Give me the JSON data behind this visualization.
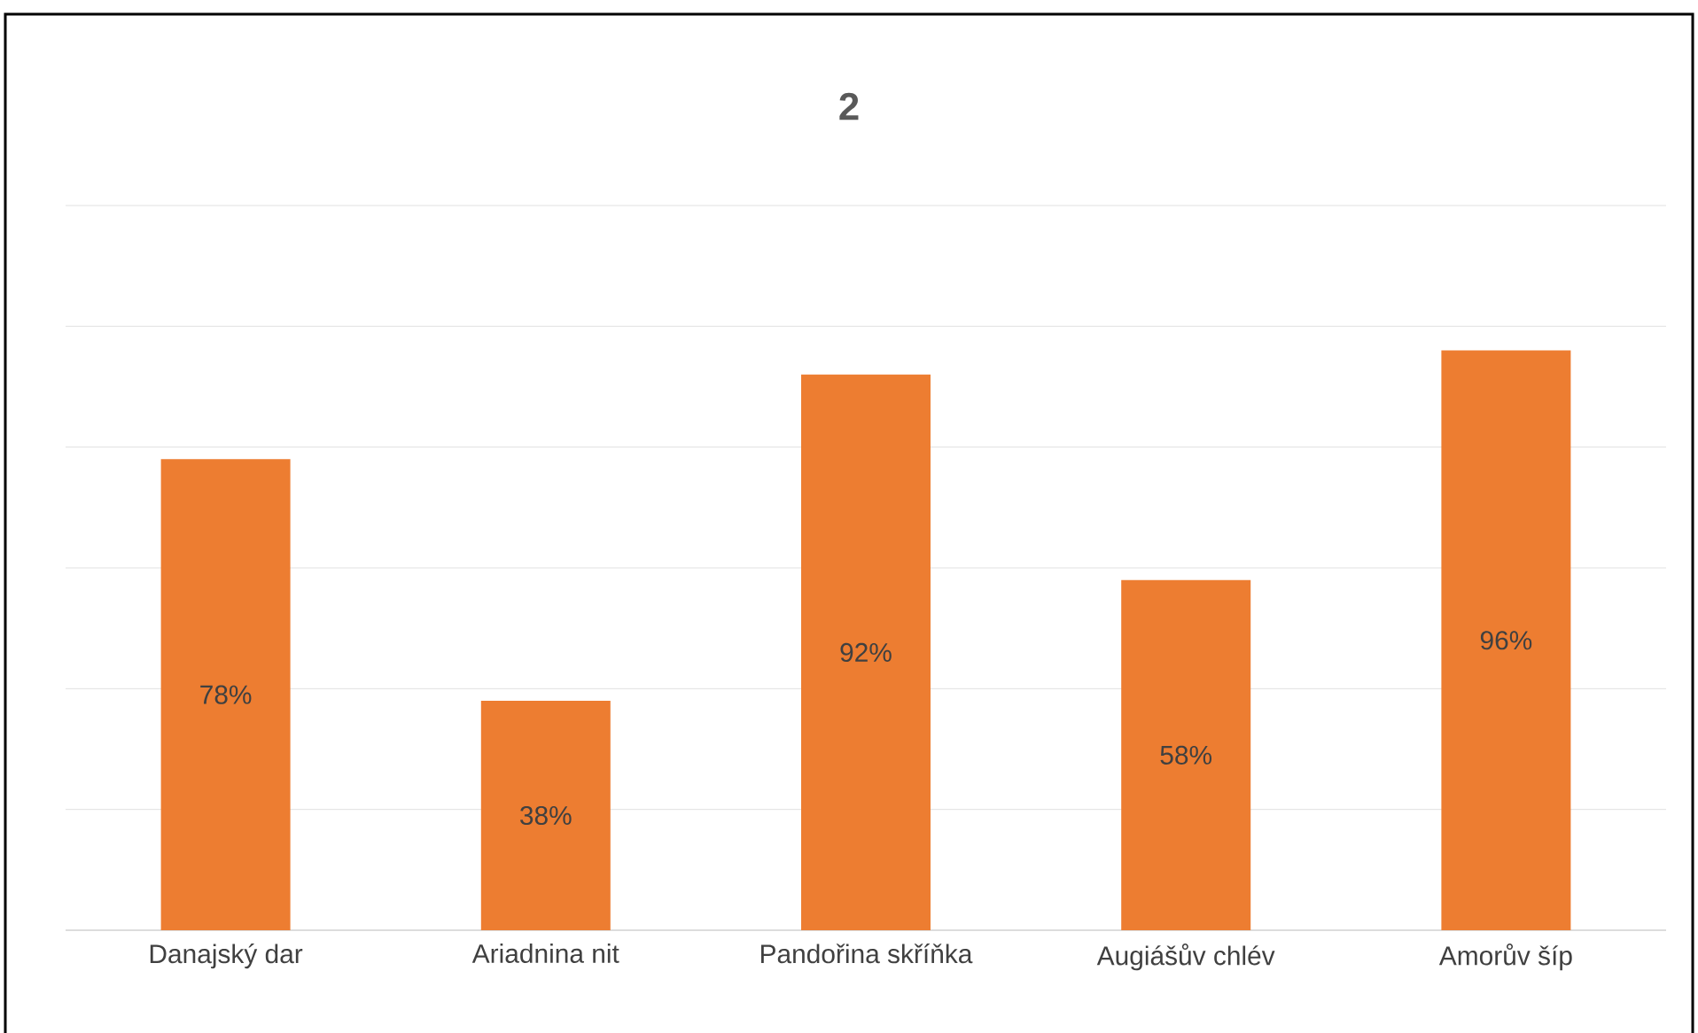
{
  "chart_data": {
    "type": "bar",
    "title": "2",
    "categories": [
      "Danajský dar",
      "Ariadnina nit",
      "Pandořina skříňka",
      "Augiášův chlév",
      "Amorův šíp"
    ],
    "values": [
      78,
      38,
      92,
      58,
      96
    ],
    "value_labels": [
      "78%",
      "38%",
      "92%",
      "58%",
      "96%"
    ],
    "color": "#ed7d31",
    "ylim": [
      0,
      120
    ],
    "yticks": [
      {
        "value": 0,
        "label": null
      },
      {
        "value": 20,
        "label": null
      },
      {
        "value": 40,
        "label": null
      },
      {
        "value": 60,
        "label": null
      },
      {
        "value": 80,
        "label": null
      },
      {
        "value": 100,
        "label": null
      },
      {
        "value": 120,
        "label": null
      }
    ],
    "grid": "y",
    "tick_labels": "x"
  }
}
